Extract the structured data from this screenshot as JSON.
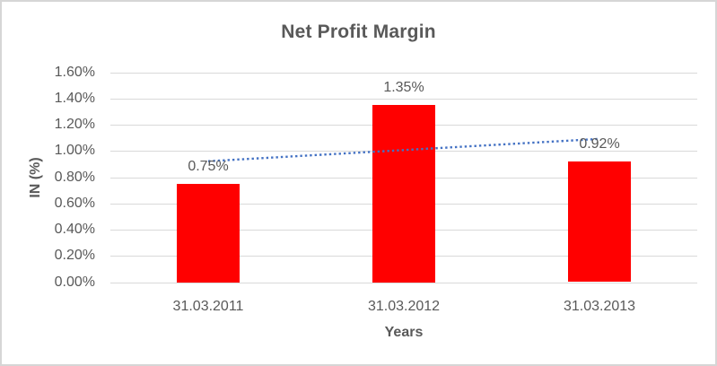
{
  "chart_data": {
    "type": "bar",
    "title": "Net Profit Margin",
    "xlabel": "Years",
    "ylabel": "IN (%)",
    "categories": [
      "31.03.2011",
      "31.03.2012",
      "31.03.2013"
    ],
    "values": [
      0.75,
      1.35,
      0.92
    ],
    "data_labels": [
      "0.75%",
      "1.35%",
      "0.92%"
    ],
    "y_ticks": [
      {
        "value": 0.0,
        "label": "0.00%"
      },
      {
        "value": 0.2,
        "label": "0.20%"
      },
      {
        "value": 0.4,
        "label": "0.40%"
      },
      {
        "value": 0.6,
        "label": "0.60%"
      },
      {
        "value": 0.8,
        "label": "0.80%"
      },
      {
        "value": 1.0,
        "label": "1.00%"
      },
      {
        "value": 1.2,
        "label": "1.20%"
      },
      {
        "value": 1.4,
        "label": "1.40%"
      },
      {
        "value": 1.6,
        "label": "1.60%"
      }
    ],
    "ylim": [
      0,
      1.6
    ],
    "grid": true,
    "legend": "none",
    "bar_color": "#ff0000",
    "trendline": {
      "type": "linear",
      "style": "dotted",
      "color": "#4472c4",
      "start_value": 0.9217,
      "end_value": 1.0917
    },
    "gridline_color": "#d9d9d9",
    "text_color": "#595959"
  }
}
